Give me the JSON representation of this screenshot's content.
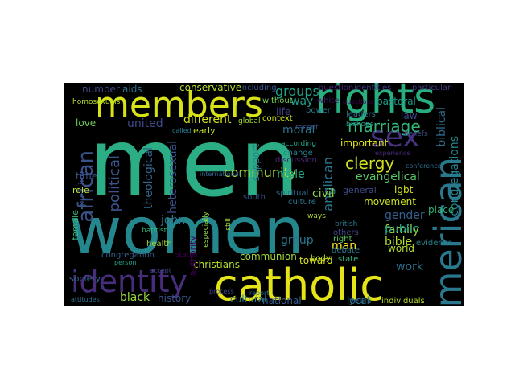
{
  "words": [
    {
      "text": "men",
      "color": "#2bae85"
    },
    {
      "text": "women",
      "color": "#24878e"
    },
    {
      "text": "rights",
      "color": "#29af7f"
    },
    {
      "text": "members",
      "color": "#d8e219"
    },
    {
      "text": "catholic",
      "color": "#e5e419"
    },
    {
      "text": "identity",
      "color": "#472d7b"
    },
    {
      "text": "american",
      "color": "#2a788e"
    },
    {
      "text": "sex",
      "color": "#46327e"
    },
    {
      "text": "marriage",
      "color": "#34b679"
    },
    {
      "text": "clergy",
      "color": "#d0e11c"
    },
    {
      "text": "african",
      "color": "#3b528b"
    },
    {
      "text": "community",
      "color": "#a5db36"
    },
    {
      "text": "groups",
      "color": "#20a386"
    },
    {
      "text": "conservative",
      "color": "#b8de29"
    },
    {
      "text": "different",
      "color": "#d2e21b"
    },
    {
      "text": "united",
      "color": "#3e4989"
    },
    {
      "text": "political",
      "color": "#3a548c"
    },
    {
      "text": "moral",
      "color": "#2c738e"
    },
    {
      "text": "life",
      "color": "#424086"
    },
    {
      "text": "anglican",
      "color": "#2a768e"
    },
    {
      "text": "biblical",
      "color": "#306a8e"
    },
    {
      "text": "congregations",
      "color": "#25848e"
    },
    {
      "text": "evangelical",
      "color": "#58c765"
    },
    {
      "text": "heterosexual",
      "color": "#3b518b"
    },
    {
      "text": "theological",
      "color": "#31678e"
    },
    {
      "text": "john",
      "color": "#2a778e"
    },
    {
      "text": "support",
      "color": "#26828e"
    },
    {
      "text": "male",
      "color": "#22a785"
    },
    {
      "text": "civil",
      "color": "#86d549"
    },
    {
      "text": "gender",
      "color": "#355f8d"
    },
    {
      "text": "family",
      "color": "#95d840"
    },
    {
      "text": "public",
      "color": "#1fa088"
    },
    {
      "text": "bible",
      "color": "#b5de2b"
    },
    {
      "text": "work",
      "color": "#2c718e"
    },
    {
      "text": "group",
      "color": "#2a778e"
    },
    {
      "text": "important",
      "color": "#e2e418"
    },
    {
      "text": "movement",
      "color": "#cae11f"
    },
    {
      "text": "general",
      "color": "#3e4a89"
    },
    {
      "text": "lgbt",
      "color": "#d2e21b"
    },
    {
      "text": "place",
      "color": "#31b57b"
    },
    {
      "text": "early",
      "color": "#bddf26"
    },
    {
      "text": "love",
      "color": "#6ece58"
    },
    {
      "text": "time",
      "color": "#3b528b"
    },
    {
      "text": "way",
      "color": "#1f9e89"
    },
    {
      "text": "black",
      "color": "#9bd93c"
    },
    {
      "text": "history",
      "color": "#3a538b"
    },
    {
      "text": "cultural",
      "color": "#29798e"
    },
    {
      "text": "national",
      "color": "#375b8d"
    },
    {
      "text": "local",
      "color": "#2d708e"
    },
    {
      "text": "christians",
      "color": "#b5de2b"
    },
    {
      "text": "communion",
      "color": "#a2da37"
    },
    {
      "text": "position",
      "color": "#3b528b"
    },
    {
      "text": "number",
      "color": "#3e4989"
    },
    {
      "text": "aids",
      "color": "#2d718e"
    },
    {
      "text": "society",
      "color": "#31678e"
    },
    {
      "text": "role",
      "color": "#bddf26"
    },
    {
      "text": "female",
      "color": "#37b878"
    },
    {
      "text": "health",
      "color": "#9dd93b"
    },
    {
      "text": "authority",
      "color": "#440154"
    },
    {
      "text": "man",
      "color": "#fde725"
    },
    {
      "text": "world",
      "color": "#b0dd2f"
    },
    {
      "text": "toward",
      "color": "#d8e219"
    },
    {
      "text": "individuals",
      "color": "#b8de29"
    },
    {
      "text": "including",
      "color": "#39558c"
    },
    {
      "text": "question",
      "color": "#482475"
    },
    {
      "text": "identities",
      "color": "#443983"
    },
    {
      "text": "particular",
      "color": "#453781"
    },
    {
      "text": "pastoral",
      "color": "#1e9b8a"
    },
    {
      "text": "law",
      "color": "#3e4989"
    },
    {
      "text": "leaders",
      "color": "#2c738e"
    },
    {
      "text": "power",
      "color": "#287d8e"
    },
    {
      "text": "white",
      "color": "#481a6c"
    },
    {
      "text": "questions",
      "color": "#440154"
    },
    {
      "text": "context",
      "color": "#d0e11c"
    },
    {
      "text": "without",
      "color": "#7ad151"
    },
    {
      "text": "global",
      "color": "#a0da39"
    },
    {
      "text": "recent",
      "color": "#3b528b"
    },
    {
      "text": "according",
      "color": "#20a486"
    },
    {
      "text": "change",
      "color": "#26828e"
    },
    {
      "text": "spiritual",
      "color": "#2f6c8e"
    },
    {
      "text": "culture",
      "color": "#2b748e"
    },
    {
      "text": "discussion",
      "color": "#482677"
    },
    {
      "text": "right",
      "color": "#5ec962"
    },
    {
      "text": "debate",
      "color": "#2a788e"
    },
    {
      "text": "state",
      "color": "#31b57b"
    },
    {
      "text": "others",
      "color": "#404688"
    },
    {
      "text": "body",
      "color": "#bddf26"
    },
    {
      "text": "years",
      "color": "#306a8e"
    },
    {
      "text": "evidence",
      "color": "#26828e"
    },
    {
      "text": "congregation",
      "color": "#355f8d"
    },
    {
      "text": "especially",
      "color": "#95d840"
    },
    {
      "text": "still",
      "color": "#a8db34"
    },
    {
      "text": "states",
      "color": "#440154"
    },
    {
      "text": "process",
      "color": "#3e4989"
    },
    {
      "text": "report",
      "color": "#31688e"
    },
    {
      "text": "attitudes",
      "color": "#2c718e"
    },
    {
      "text": "homosexuals",
      "color": "#b8de29"
    },
    {
      "text": "called",
      "color": "#287c8e"
    },
    {
      "text": "international",
      "color": "#32658e"
    },
    {
      "text": "british",
      "color": "#2a788e"
    },
    {
      "text": "south",
      "color": "#3b528b"
    },
    {
      "text": "baptist",
      "color": "#35b779"
    },
    {
      "text": "bishops",
      "color": "#1f9a8a"
    },
    {
      "text": "beliefs",
      "color": "#3b528b"
    },
    {
      "text": "ways",
      "color": "#b5de2b"
    },
    {
      "text": "experience",
      "color": "#472a7a"
    },
    {
      "text": "conference",
      "color": "#2e6e8e"
    },
    {
      "text": "accept",
      "color": "#3f4889"
    },
    {
      "text": "person",
      "color": "#20a386"
    }
  ]
}
